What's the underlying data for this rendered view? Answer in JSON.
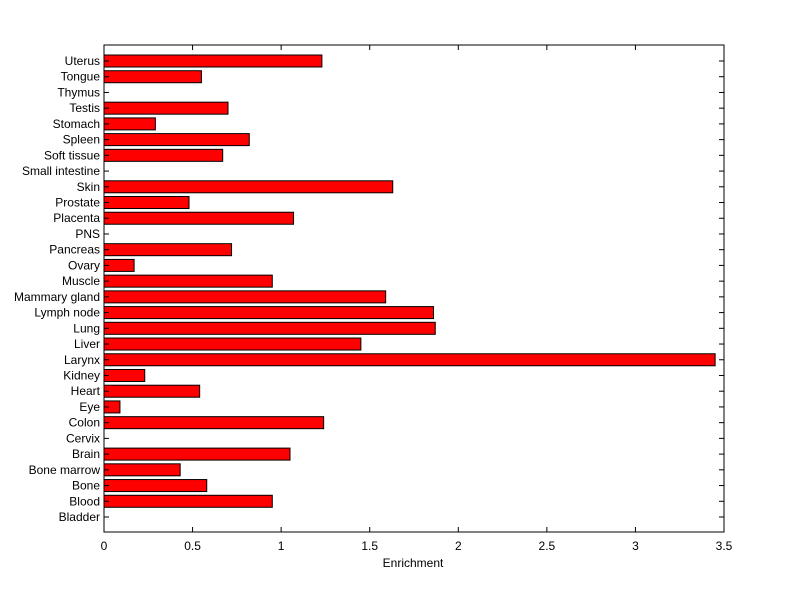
{
  "chart_data": {
    "type": "bar",
    "orientation": "horizontal",
    "title": "",
    "xlabel": "Enrichment",
    "ylabel": "",
    "xlim": [
      0,
      3.5
    ],
    "xticks": [
      "0",
      "0.5",
      "1",
      "1.5",
      "2",
      "2.5",
      "3",
      "3.5"
    ],
    "xtick_values": [
      0,
      0.5,
      1,
      1.5,
      2,
      2.5,
      3,
      3.5
    ],
    "grid": false,
    "bar_color": "#ff0000",
    "categories": [
      "Bladder",
      "Blood",
      "Bone",
      "Bone marrow",
      "Brain",
      "Cervix",
      "Colon",
      "Eye",
      "Heart",
      "Kidney",
      "Larynx",
      "Liver",
      "Lung",
      "Lymph node",
      "Mammary gland",
      "Muscle",
      "Ovary",
      "Pancreas",
      "PNS",
      "Placenta",
      "Prostate",
      "Skin",
      "Small intestine",
      "Soft tissue",
      "Spleen",
      "Stomach",
      "Testis",
      "Thymus",
      "Tongue",
      "Uterus"
    ],
    "values": [
      0,
      0.95,
      0.58,
      0.43,
      1.05,
      0,
      1.24,
      0.09,
      0.54,
      0.23,
      3.45,
      1.45,
      1.87,
      1.86,
      1.59,
      0.95,
      0.17,
      0.72,
      0,
      1.07,
      0.48,
      1.63,
      0,
      0.67,
      0.82,
      0.29,
      0.7,
      0,
      0.55,
      1.23
    ]
  }
}
